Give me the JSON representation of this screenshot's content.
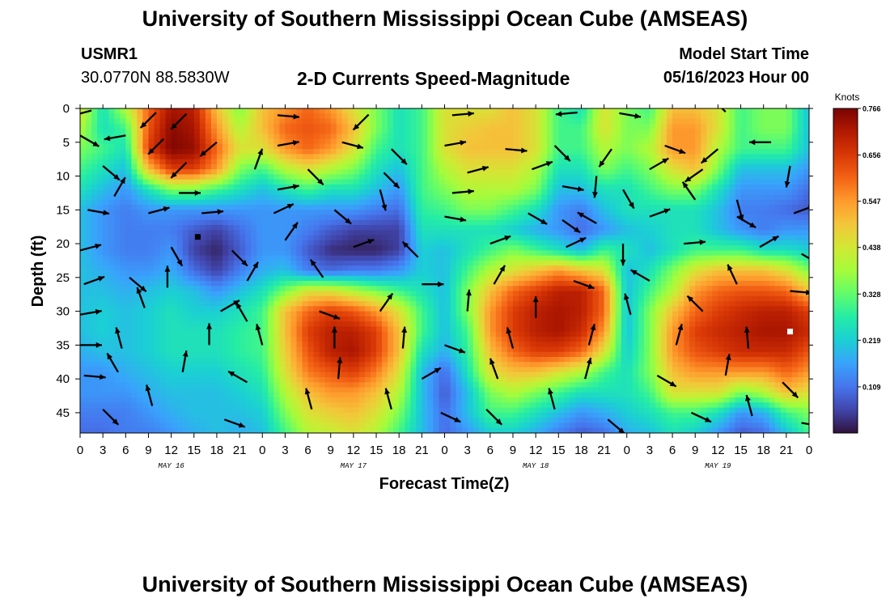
{
  "header": {
    "title": "University of Southern Mississippi Ocean Cube (AMSEAS)",
    "station_id": "USMR1",
    "coordinates": "30.0770N  88.5830W",
    "product": "2-D Currents Speed-Magnitude",
    "model_start_label": "Model Start Time",
    "model_start_value": "05/16/2023 Hour 00"
  },
  "footer": {
    "title_repeat": "University of Southern Mississippi Ocean Cube (AMSEAS)"
  },
  "colors": {
    "scale": [
      "#30123b",
      "#4145ab",
      "#4675ed",
      "#39a2fc",
      "#1bcfd4",
      "#24eca6",
      "#61fc6c",
      "#a4fc3b",
      "#d1e834",
      "#f3c63a",
      "#fe9b2d",
      "#f36315",
      "#d93806",
      "#b11901",
      "#7a0403"
    ]
  },
  "chart_data": {
    "type": "heatmap",
    "subtype": "depth-time current section with direction vectors",
    "title": "2-D Currents Speed-Magnitude",
    "xlabel": "Forecast Time(Z)",
    "ylabel": "Depth (ft)",
    "x_range_hours": [
      0,
      96
    ],
    "y_range_ft": [
      0,
      48
    ],
    "x_tick_labels": [
      "0",
      "3",
      "6",
      "9",
      "12",
      "15",
      "18",
      "21",
      "0",
      "3",
      "6",
      "9",
      "12",
      "15",
      "18",
      "21",
      "0",
      "3",
      "6",
      "9",
      "12",
      "15",
      "18",
      "21",
      "0",
      "3",
      "6",
      "9",
      "12",
      "15",
      "18",
      "21",
      "0"
    ],
    "day_labels": [
      "MAY 16",
      "MAY 17",
      "MAY 18",
      "MAY 19"
    ],
    "y_ticks": [
      0,
      5,
      10,
      15,
      20,
      25,
      30,
      35,
      40,
      45
    ],
    "colorbar": {
      "units": "Knots",
      "min": 0.0,
      "max": 0.766,
      "tick_values": [
        0.766,
        0.656,
        0.547,
        0.438,
        0.328,
        0.219,
        0.109
      ],
      "tick_labels": [
        "0.766",
        "0.656",
        "0.547",
        "0.438",
        "0.328",
        "0.219",
        "0.109"
      ]
    },
    "depth_levels_ft": [
      0,
      3,
      6,
      9,
      12,
      15,
      18,
      21,
      24,
      27,
      30,
      33,
      36,
      39,
      42,
      45,
      48
    ],
    "time_hours": [
      0,
      3,
      6,
      9,
      12,
      15,
      18,
      21,
      24,
      27,
      30,
      33,
      36,
      39,
      42,
      45,
      48,
      51,
      54,
      57,
      60,
      63,
      66,
      69,
      72,
      75,
      78,
      81,
      84,
      87,
      90,
      93,
      96
    ],
    "speed_knots": [
      [
        0.45,
        0.25,
        0.4,
        0.6,
        0.72,
        0.7,
        0.5,
        0.35,
        0.5,
        0.55,
        0.6,
        0.55,
        0.45,
        0.35,
        0.25,
        0.3,
        0.45,
        0.45,
        0.45,
        0.5,
        0.45,
        0.3,
        0.25,
        0.45,
        0.35,
        0.3,
        0.5,
        0.5,
        0.45,
        0.3,
        0.35,
        0.35,
        0.2
      ],
      [
        0.4,
        0.25,
        0.3,
        0.62,
        0.75,
        0.72,
        0.55,
        0.4,
        0.5,
        0.6,
        0.62,
        0.6,
        0.5,
        0.35,
        0.25,
        0.3,
        0.45,
        0.48,
        0.5,
        0.5,
        0.45,
        0.3,
        0.3,
        0.45,
        0.35,
        0.35,
        0.55,
        0.55,
        0.45,
        0.3,
        0.35,
        0.35,
        0.2
      ],
      [
        0.35,
        0.3,
        0.25,
        0.65,
        0.76,
        0.74,
        0.6,
        0.45,
        0.45,
        0.55,
        0.6,
        0.55,
        0.45,
        0.3,
        0.25,
        0.3,
        0.45,
        0.5,
        0.5,
        0.5,
        0.45,
        0.3,
        0.3,
        0.4,
        0.35,
        0.4,
        0.55,
        0.55,
        0.4,
        0.3,
        0.3,
        0.3,
        0.2
      ],
      [
        0.3,
        0.25,
        0.2,
        0.5,
        0.65,
        0.65,
        0.55,
        0.35,
        0.3,
        0.4,
        0.45,
        0.4,
        0.35,
        0.25,
        0.2,
        0.3,
        0.4,
        0.45,
        0.45,
        0.45,
        0.4,
        0.25,
        0.25,
        0.35,
        0.3,
        0.35,
        0.45,
        0.5,
        0.35,
        0.2,
        0.2,
        0.2,
        0.15
      ],
      [
        0.25,
        0.2,
        0.15,
        0.25,
        0.35,
        0.35,
        0.3,
        0.25,
        0.2,
        0.25,
        0.3,
        0.25,
        0.25,
        0.2,
        0.15,
        0.3,
        0.35,
        0.4,
        0.4,
        0.4,
        0.35,
        0.2,
        0.2,
        0.25,
        0.25,
        0.3,
        0.35,
        0.35,
        0.25,
        0.15,
        0.15,
        0.15,
        0.1
      ],
      [
        0.2,
        0.15,
        0.12,
        0.15,
        0.15,
        0.15,
        0.15,
        0.15,
        0.15,
        0.15,
        0.15,
        0.15,
        0.15,
        0.12,
        0.1,
        0.28,
        0.3,
        0.35,
        0.35,
        0.3,
        0.25,
        0.15,
        0.12,
        0.2,
        0.25,
        0.25,
        0.25,
        0.25,
        0.2,
        0.12,
        0.12,
        0.1,
        0.08
      ],
      [
        0.2,
        0.15,
        0.12,
        0.12,
        0.12,
        0.08,
        0.05,
        0.1,
        0.15,
        0.15,
        0.12,
        0.08,
        0.05,
        0.05,
        0.05,
        0.25,
        0.25,
        0.25,
        0.25,
        0.22,
        0.18,
        0.15,
        0.1,
        0.15,
        0.2,
        0.22,
        0.25,
        0.25,
        0.2,
        0.15,
        0.12,
        0.15,
        0.15
      ],
      [
        0.2,
        0.15,
        0.12,
        0.12,
        0.15,
        0.05,
        0.02,
        0.08,
        0.15,
        0.15,
        0.08,
        0.03,
        0.02,
        0.02,
        0.05,
        0.22,
        0.2,
        0.25,
        0.3,
        0.35,
        0.3,
        0.25,
        0.2,
        0.3,
        0.25,
        0.2,
        0.25,
        0.3,
        0.3,
        0.3,
        0.25,
        0.25,
        0.22
      ],
      [
        0.2,
        0.18,
        0.15,
        0.15,
        0.18,
        0.1,
        0.05,
        0.12,
        0.18,
        0.2,
        0.12,
        0.1,
        0.12,
        0.12,
        0.15,
        0.22,
        0.2,
        0.3,
        0.4,
        0.45,
        0.5,
        0.55,
        0.5,
        0.45,
        0.2,
        0.25,
        0.35,
        0.45,
        0.5,
        0.5,
        0.5,
        0.45,
        0.35
      ],
      [
        0.2,
        0.2,
        0.18,
        0.2,
        0.22,
        0.2,
        0.15,
        0.2,
        0.25,
        0.35,
        0.45,
        0.45,
        0.4,
        0.35,
        0.3,
        0.25,
        0.2,
        0.35,
        0.5,
        0.6,
        0.65,
        0.7,
        0.7,
        0.6,
        0.2,
        0.3,
        0.4,
        0.55,
        0.6,
        0.62,
        0.62,
        0.6,
        0.5
      ],
      [
        0.2,
        0.22,
        0.2,
        0.22,
        0.25,
        0.22,
        0.22,
        0.25,
        0.3,
        0.5,
        0.6,
        0.65,
        0.62,
        0.55,
        0.45,
        0.3,
        0.2,
        0.35,
        0.55,
        0.65,
        0.7,
        0.72,
        0.7,
        0.6,
        0.2,
        0.35,
        0.5,
        0.6,
        0.65,
        0.68,
        0.7,
        0.7,
        0.65
      ],
      [
        0.2,
        0.22,
        0.2,
        0.22,
        0.25,
        0.25,
        0.25,
        0.28,
        0.3,
        0.5,
        0.65,
        0.7,
        0.7,
        0.65,
        0.5,
        0.3,
        0.2,
        0.3,
        0.55,
        0.65,
        0.7,
        0.72,
        0.68,
        0.55,
        0.2,
        0.35,
        0.55,
        0.65,
        0.68,
        0.7,
        0.72,
        0.72,
        0.68
      ],
      [
        0.18,
        0.2,
        0.2,
        0.22,
        0.25,
        0.25,
        0.25,
        0.28,
        0.3,
        0.48,
        0.62,
        0.7,
        0.72,
        0.65,
        0.5,
        0.25,
        0.18,
        0.28,
        0.5,
        0.6,
        0.65,
        0.65,
        0.6,
        0.45,
        0.22,
        0.35,
        0.55,
        0.62,
        0.65,
        0.68,
        0.68,
        0.68,
        0.62
      ],
      [
        0.15,
        0.15,
        0.18,
        0.2,
        0.22,
        0.22,
        0.22,
        0.25,
        0.28,
        0.45,
        0.58,
        0.62,
        0.65,
        0.58,
        0.45,
        0.2,
        0.1,
        0.25,
        0.45,
        0.5,
        0.5,
        0.45,
        0.4,
        0.3,
        0.25,
        0.35,
        0.5,
        0.55,
        0.55,
        0.55,
        0.55,
        0.6,
        0.55
      ],
      [
        0.15,
        0.15,
        0.15,
        0.18,
        0.2,
        0.2,
        0.2,
        0.22,
        0.25,
        0.4,
        0.5,
        0.55,
        0.55,
        0.5,
        0.4,
        0.2,
        0.08,
        0.2,
        0.35,
        0.4,
        0.35,
        0.3,
        0.25,
        0.25,
        0.25,
        0.3,
        0.45,
        0.45,
        0.45,
        0.35,
        0.4,
        0.5,
        0.45
      ],
      [
        0.12,
        0.12,
        0.12,
        0.15,
        0.18,
        0.2,
        0.2,
        0.2,
        0.22,
        0.35,
        0.45,
        0.48,
        0.5,
        0.45,
        0.35,
        0.2,
        0.1,
        0.2,
        0.3,
        0.3,
        0.25,
        0.2,
        0.15,
        0.18,
        0.22,
        0.25,
        0.3,
        0.3,
        0.25,
        0.15,
        0.18,
        0.3,
        0.35
      ],
      [
        0.1,
        0.1,
        0.12,
        0.12,
        0.15,
        0.18,
        0.2,
        0.18,
        0.2,
        0.3,
        0.4,
        0.42,
        0.45,
        0.4,
        0.3,
        0.2,
        0.1,
        0.15,
        0.22,
        0.22,
        0.18,
        0.12,
        0.08,
        0.1,
        0.18,
        0.2,
        0.25,
        0.22,
        0.15,
        0.08,
        0.1,
        0.2,
        0.3
      ]
    ],
    "vectors": [
      {
        "t": 1.5,
        "d": 0.3,
        "dir": 255
      },
      {
        "t": 10.0,
        "d": 0.6,
        "dir": 225
      },
      {
        "t": 14.0,
        "d": 0.8,
        "dir": 225
      },
      {
        "t": 26.0,
        "d": 1.0,
        "dir": 95
      },
      {
        "t": 38.0,
        "d": 0.9,
        "dir": 225
      },
      {
        "t": 49.0,
        "d": 1.0,
        "dir": 85
      },
      {
        "t": 65.5,
        "d": 0.6,
        "dir": 265
      },
      {
        "t": 71.0,
        "d": 0.7,
        "dir": 100
      },
      {
        "t": 85.0,
        "d": 0.5,
        "dir": 315
      },
      {
        "t": 0.0,
        "d": 4.0,
        "dir": 120
      },
      {
        "t": 6.0,
        "d": 4.0,
        "dir": 260
      },
      {
        "t": 11.0,
        "d": 4.5,
        "dir": 225
      },
      {
        "t": 18.0,
        "d": 5.0,
        "dir": 230
      },
      {
        "t": 26.0,
        "d": 5.5,
        "dir": 80
      },
      {
        "t": 34.5,
        "d": 5.0,
        "dir": 105
      },
      {
        "t": 41.0,
        "d": 6.0,
        "dir": 135
      },
      {
        "t": 48.0,
        "d": 5.5,
        "dir": 80
      },
      {
        "t": 56.0,
        "d": 6.0,
        "dir": 95
      },
      {
        "t": 62.5,
        "d": 5.5,
        "dir": 135
      },
      {
        "t": 70.0,
        "d": 6.0,
        "dir": 215
      },
      {
        "t": 77.0,
        "d": 5.5,
        "dir": 110
      },
      {
        "t": 84.0,
        "d": 6.0,
        "dir": 230
      },
      {
        "t": 91.0,
        "d": 5.0,
        "dir": 270
      },
      {
        "t": 3.0,
        "d": 8.5,
        "dir": 130
      },
      {
        "t": 14.0,
        "d": 8.0,
        "dir": 225
      },
      {
        "t": 23.0,
        "d": 9.0,
        "dir": 20
      },
      {
        "t": 30.0,
        "d": 9.0,
        "dir": 135
      },
      {
        "t": 40.0,
        "d": 9.5,
        "dir": 135
      },
      {
        "t": 51.0,
        "d": 9.5,
        "dir": 75
      },
      {
        "t": 59.5,
        "d": 9.0,
        "dir": 70
      },
      {
        "t": 68.0,
        "d": 10.0,
        "dir": 185
      },
      {
        "t": 75.0,
        "d": 9.0,
        "dir": 60
      },
      {
        "t": 82.0,
        "d": 9.0,
        "dir": 235
      },
      {
        "t": 93.5,
        "d": 8.5,
        "dir": 190
      },
      {
        "t": 4.5,
        "d": 13.0,
        "dir": 30
      },
      {
        "t": 13.0,
        "d": 12.5,
        "dir": 90
      },
      {
        "t": 26.0,
        "d": 12.0,
        "dir": 80
      },
      {
        "t": 39.5,
        "d": 12.0,
        "dir": 165
      },
      {
        "t": 49.0,
        "d": 12.5,
        "dir": 85
      },
      {
        "t": 63.5,
        "d": 11.5,
        "dir": 100
      },
      {
        "t": 71.5,
        "d": 12.0,
        "dir": 150
      },
      {
        "t": 81.0,
        "d": 13.5,
        "dir": 325
      },
      {
        "t": 86.5,
        "d": 13.5,
        "dir": 165
      },
      {
        "t": 1.0,
        "d": 15.0,
        "dir": 100
      },
      {
        "t": 9.0,
        "d": 15.5,
        "dir": 75
      },
      {
        "t": 16.0,
        "d": 15.5,
        "dir": 85
      },
      {
        "t": 25.5,
        "d": 15.5,
        "dir": 65
      },
      {
        "t": 33.5,
        "d": 15.0,
        "dir": 130
      },
      {
        "t": 48.0,
        "d": 16.0,
        "dir": 100
      },
      {
        "t": 59.0,
        "d": 15.5,
        "dir": 120
      },
      {
        "t": 63.5,
        "d": 16.5,
        "dir": 125
      },
      {
        "t": 68.0,
        "d": 17.0,
        "dir": 300
      },
      {
        "t": 75.0,
        "d": 16.0,
        "dir": 70
      },
      {
        "t": 86.5,
        "d": 16.0,
        "dir": 120
      },
      {
        "t": 94.0,
        "d": 15.5,
        "dir": 70
      },
      {
        "t": 0.0,
        "d": 21.0,
        "dir": 75
      },
      {
        "t": 12.0,
        "d": 20.5,
        "dir": 150
      },
      {
        "t": 20.0,
        "d": 21.0,
        "dir": 135
      },
      {
        "t": 27.0,
        "d": 19.5,
        "dir": 35
      },
      {
        "t": 36.0,
        "d": 20.5,
        "dir": 70
      },
      {
        "t": 44.5,
        "d": 22.0,
        "dir": 315
      },
      {
        "t": 54.0,
        "d": 20.0,
        "dir": 70
      },
      {
        "t": 64.0,
        "d": 20.5,
        "dir": 65
      },
      {
        "t": 71.5,
        "d": 20.0,
        "dir": 180
      },
      {
        "t": 79.5,
        "d": 20.0,
        "dir": 85
      },
      {
        "t": 89.5,
        "d": 20.5,
        "dir": 60
      },
      {
        "t": 95.0,
        "d": 21.5,
        "dir": 120
      },
      {
        "t": 0.5,
        "d": 26.0,
        "dir": 70
      },
      {
        "t": 6.5,
        "d": 25.0,
        "dir": 130
      },
      {
        "t": 11.5,
        "d": 26.5,
        "dir": 0
      },
      {
        "t": 22.0,
        "d": 25.5,
        "dir": 30
      },
      {
        "t": 32.0,
        "d": 25.0,
        "dir": 325
      },
      {
        "t": 45.0,
        "d": 26.0,
        "dir": 90
      },
      {
        "t": 54.5,
        "d": 26.0,
        "dir": 30
      },
      {
        "t": 65.0,
        "d": 25.5,
        "dir": 110
      },
      {
        "t": 75.0,
        "d": 25.5,
        "dir": 300
      },
      {
        "t": 86.5,
        "d": 26.0,
        "dir": 335
      },
      {
        "t": 93.5,
        "d": 27.0,
        "dir": 95
      },
      {
        "t": 0.0,
        "d": 30.5,
        "dir": 80
      },
      {
        "t": 8.5,
        "d": 29.5,
        "dir": 340
      },
      {
        "t": 18.5,
        "d": 30.0,
        "dir": 60
      },
      {
        "t": 22.0,
        "d": 31.5,
        "dir": 330
      },
      {
        "t": 31.5,
        "d": 30.0,
        "dir": 110
      },
      {
        "t": 39.5,
        "d": 30.0,
        "dir": 35
      },
      {
        "t": 51.0,
        "d": 30.0,
        "dir": 5
      },
      {
        "t": 60.0,
        "d": 31.0,
        "dir": 0
      },
      {
        "t": 72.5,
        "d": 30.5,
        "dir": 345
      },
      {
        "t": 82.0,
        "d": 30.0,
        "dir": 315
      },
      {
        "t": 96.0,
        "d": 30.5,
        "dir": 125
      },
      {
        "t": 0.0,
        "d": 35.0,
        "dir": 90
      },
      {
        "t": 5.5,
        "d": 35.5,
        "dir": 345
      },
      {
        "t": 17.0,
        "d": 35.0,
        "dir": 0
      },
      {
        "t": 24.0,
        "d": 35.0,
        "dir": 345
      },
      {
        "t": 33.5,
        "d": 35.5,
        "dir": 0
      },
      {
        "t": 42.5,
        "d": 35.5,
        "dir": 5
      },
      {
        "t": 48.0,
        "d": 35.0,
        "dir": 110
      },
      {
        "t": 57.0,
        "d": 35.5,
        "dir": 345
      },
      {
        "t": 67.0,
        "d": 35.0,
        "dir": 15
      },
      {
        "t": 78.5,
        "d": 35.0,
        "dir": 15
      },
      {
        "t": 88.0,
        "d": 35.5,
        "dir": 355
      },
      {
        "t": 0.5,
        "d": 39.5,
        "dir": 95
      },
      {
        "t": 5.0,
        "d": 39.0,
        "dir": 330
      },
      {
        "t": 13.5,
        "d": 39.0,
        "dir": 10
      },
      {
        "t": 22.0,
        "d": 40.5,
        "dir": 300
      },
      {
        "t": 34.0,
        "d": 40.0,
        "dir": 5
      },
      {
        "t": 45.0,
        "d": 40.0,
        "dir": 60
      },
      {
        "t": 55.0,
        "d": 40.0,
        "dir": 340
      },
      {
        "t": 66.5,
        "d": 40.0,
        "dir": 15
      },
      {
        "t": 76.0,
        "d": 39.5,
        "dir": 120
      },
      {
        "t": 85.0,
        "d": 39.5,
        "dir": 10
      },
      {
        "t": 92.5,
        "d": 40.5,
        "dir": 135
      },
      {
        "t": 3.0,
        "d": 44.5,
        "dir": 135
      },
      {
        "t": 9.5,
        "d": 44.0,
        "dir": 345
      },
      {
        "t": 19.0,
        "d": 46.0,
        "dir": 110
      },
      {
        "t": 30.5,
        "d": 44.5,
        "dir": 345
      },
      {
        "t": 41.0,
        "d": 44.5,
        "dir": 345
      },
      {
        "t": 47.5,
        "d": 45.0,
        "dir": 115
      },
      {
        "t": 53.5,
        "d": 44.5,
        "dir": 135
      },
      {
        "t": 62.5,
        "d": 44.5,
        "dir": 345
      },
      {
        "t": 69.5,
        "d": 46.0,
        "dir": 130
      },
      {
        "t": 80.5,
        "d": 45.0,
        "dir": 115
      },
      {
        "t": 88.5,
        "d": 45.5,
        "dir": 345
      },
      {
        "t": 95.0,
        "d": 46.5,
        "dir": 100
      }
    ],
    "point_markers": [
      {
        "t": 15.5,
        "d": 19.0,
        "color": "#000000"
      },
      {
        "t": 93.5,
        "d": 33.0,
        "color": "#ffffff"
      }
    ]
  }
}
